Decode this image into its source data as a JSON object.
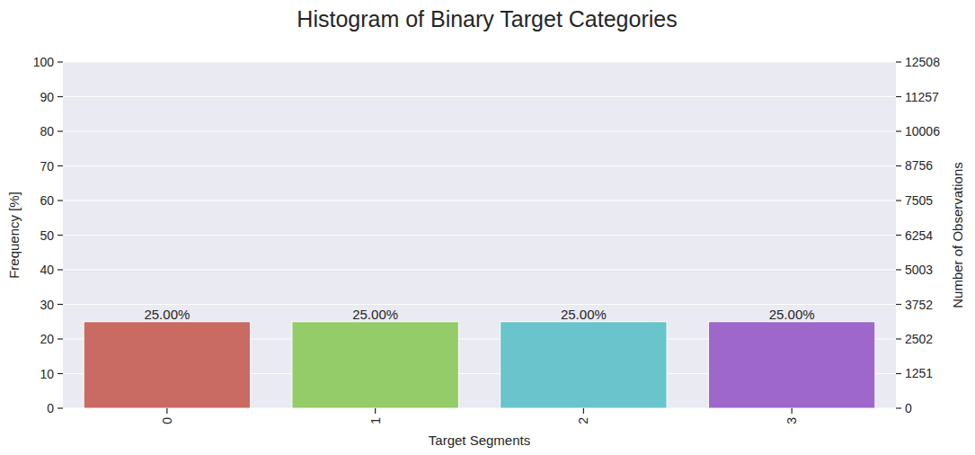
{
  "chart_data": {
    "type": "bar",
    "title": "Histogram of Binary Target Categories",
    "x_label": "Target Segments",
    "y_label": "Frequency [%]",
    "y2_label": "Number of Observations",
    "categories": [
      "0",
      "1",
      "2",
      "3"
    ],
    "values": [
      25,
      25,
      25,
      25
    ],
    "value_labels": [
      "25.00%",
      "25.00%",
      "25.00%",
      "25.00%"
    ],
    "colors": [
      "#c96b62",
      "#93cc68",
      "#6ac4cb",
      "#9d67cc"
    ],
    "ylim": [
      0,
      100
    ],
    "yticks": [
      0,
      10,
      20,
      30,
      40,
      50,
      60,
      70,
      80,
      90,
      100
    ],
    "y2lim": [
      0,
      12508
    ],
    "y2ticks": [
      0,
      1251,
      2502,
      3752,
      5003,
      6254,
      7505,
      8756,
      10006,
      11257,
      12508
    ],
    "grid": true,
    "data_labels": true
  }
}
